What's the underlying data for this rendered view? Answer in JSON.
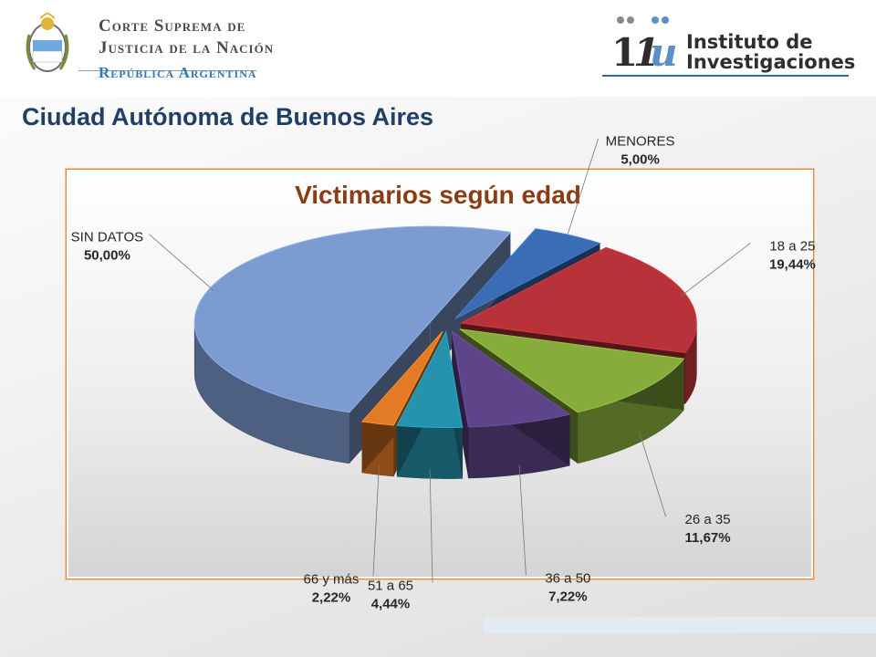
{
  "header": {
    "csjn": {
      "line1": "Corte Suprema de",
      "line2": "Justicia de la Nación",
      "line3": "República Argentina"
    },
    "instituto": {
      "line1": "Instituto de",
      "line2": "Investigaciones"
    }
  },
  "page_title": "Ciudad Autónoma de Buenos Aires",
  "chart_data": {
    "type": "pie",
    "title": "Victimarios según edad",
    "categories": [
      "MENORES",
      "18 a 25",
      "26 a 35",
      "36 a 50",
      "51 a 65",
      "66 y más",
      "SIN DATOS"
    ],
    "values": [
      5.0,
      19.44,
      11.67,
      7.22,
      4.44,
      2.22,
      50.0
    ],
    "labels": [
      "5,00%",
      "19,44%",
      "11,67%",
      "7,22%",
      "4,44%",
      "2,22%",
      "50,00%"
    ],
    "colors": [
      "#3a6db5",
      "#b8323a",
      "#86ac3c",
      "#5e4589",
      "#2593ad",
      "#e37b26",
      "#7c9bd0"
    ],
    "style": "3d-exploded",
    "legend": "none, labels with leader lines"
  }
}
